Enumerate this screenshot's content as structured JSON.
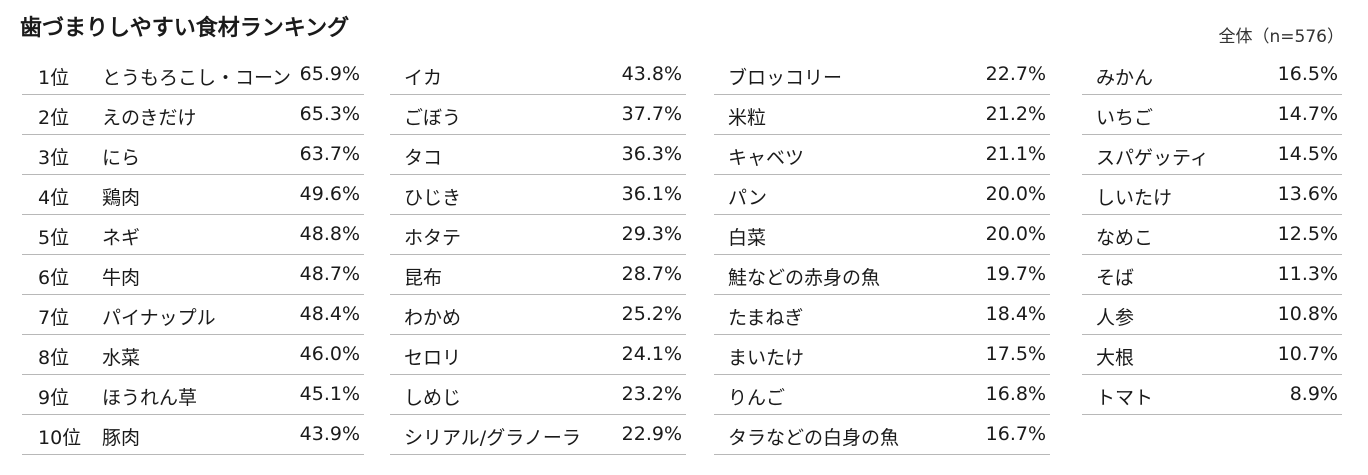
{
  "title": "歯づまりしやすい食材ランキング",
  "sample_note": "全体（n=576）",
  "columns": [
    [
      {
        "rank": "1位",
        "name": "とうもろこし・コーン",
        "pct": "65.9%"
      },
      {
        "rank": "2位",
        "name": "えのきだけ",
        "pct": "65.3%"
      },
      {
        "rank": "3位",
        "name": "にら",
        "pct": "63.7%"
      },
      {
        "rank": "4位",
        "name": "鶏肉",
        "pct": "49.6%"
      },
      {
        "rank": "5位",
        "name": "ネギ",
        "pct": "48.8%"
      },
      {
        "rank": "6位",
        "name": "牛肉",
        "pct": "48.7%"
      },
      {
        "rank": "7位",
        "name": "パイナップル",
        "pct": "48.4%"
      },
      {
        "rank": "8位",
        "name": "水菜",
        "pct": "46.0%"
      },
      {
        "rank": "9位",
        "name": "ほうれん草",
        "pct": "45.1%"
      },
      {
        "rank": "10位",
        "name": "豚肉",
        "pct": "43.9%"
      }
    ],
    [
      {
        "name": "イカ",
        "pct": "43.8%"
      },
      {
        "name": "ごぼう",
        "pct": "37.7%"
      },
      {
        "name": "タコ",
        "pct": "36.3%"
      },
      {
        "name": "ひじき",
        "pct": "36.1%"
      },
      {
        "name": "ホタテ",
        "pct": "29.3%"
      },
      {
        "name": "昆布",
        "pct": "28.7%"
      },
      {
        "name": "わかめ",
        "pct": "25.2%"
      },
      {
        "name": "セロリ",
        "pct": "24.1%"
      },
      {
        "name": "しめじ",
        "pct": "23.2%"
      },
      {
        "name": "シリアル/グラノーラ",
        "pct": "22.9%"
      }
    ],
    [
      {
        "name": "ブロッコリー",
        "pct": "22.7%"
      },
      {
        "name": "米粒",
        "pct": "21.2%"
      },
      {
        "name": "キャベツ",
        "pct": "21.1%"
      },
      {
        "name": "パン",
        "pct": "20.0%"
      },
      {
        "name": "白菜",
        "pct": "20.0%"
      },
      {
        "name": "鮭などの赤身の魚",
        "pct": "19.7%"
      },
      {
        "name": "たまねぎ",
        "pct": "18.4%"
      },
      {
        "name": "まいたけ",
        "pct": "17.5%"
      },
      {
        "name": "りんご",
        "pct": "16.8%"
      },
      {
        "name": "タラなどの白身の魚",
        "pct": "16.7%"
      }
    ],
    [
      {
        "name": "みかん",
        "pct": "16.5%"
      },
      {
        "name": "いちご",
        "pct": "14.7%"
      },
      {
        "name": "スパゲッティ",
        "pct": "14.5%"
      },
      {
        "name": "しいたけ",
        "pct": "13.6%"
      },
      {
        "name": "なめこ",
        "pct": "12.5%"
      },
      {
        "name": "そば",
        "pct": "11.3%"
      },
      {
        "name": "人参",
        "pct": "10.8%"
      },
      {
        "name": "大根",
        "pct": "10.7%"
      },
      {
        "name": "トマト",
        "pct": "8.9%"
      }
    ]
  ]
}
